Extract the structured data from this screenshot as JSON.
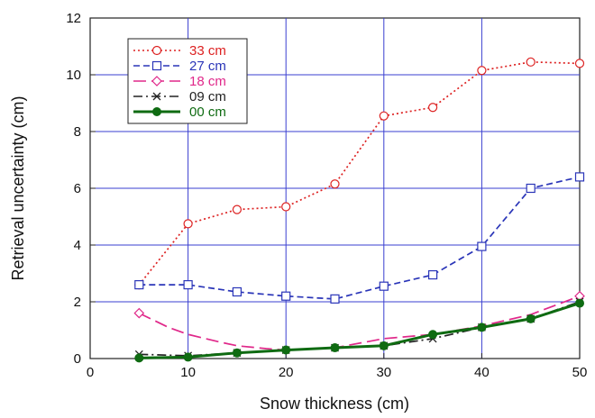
{
  "chart_data": {
    "type": "line",
    "title": "",
    "xlabel": "Snow thickness (cm)",
    "ylabel": "Retrieval uncertainty (cm)",
    "xlim": [
      0,
      50
    ],
    "ylim": [
      0,
      12
    ],
    "xticks": [
      0,
      10,
      20,
      30,
      40,
      50
    ],
    "yticks": [
      0,
      2,
      4,
      6,
      8,
      10,
      12
    ],
    "grid": true,
    "legend_position": "top-left",
    "x": [
      5,
      10,
      15,
      20,
      25,
      30,
      35,
      40,
      45,
      50
    ],
    "series": [
      {
        "name": "33 cm",
        "color": "#dd2222",
        "dash": "dotted",
        "marker": "circle",
        "values": [
          2.6,
          4.75,
          5.25,
          5.35,
          6.15,
          8.55,
          8.85,
          10.15,
          10.45,
          10.4
        ]
      },
      {
        "name": "27 cm",
        "color": "#2a35b8",
        "dash": "dashed",
        "marker": "square",
        "values": [
          2.6,
          2.6,
          2.35,
          2.2,
          2.1,
          2.55,
          2.95,
          3.95,
          6.0,
          6.4
        ]
      },
      {
        "name": "18 cm",
        "color": "#e0288a",
        "dash": "long-dash",
        "marker": "diamond",
        "values": [
          1.6,
          null,
          null,
          null,
          null,
          null,
          null,
          null,
          null,
          2.2
        ],
        "curve": [
          [
            5,
            1.6
          ],
          [
            8,
            1.1
          ],
          [
            10,
            0.85
          ],
          [
            13,
            0.6
          ],
          [
            15,
            0.45
          ],
          [
            18,
            0.35
          ],
          [
            20,
            0.3
          ],
          [
            25,
            0.38
          ],
          [
            30,
            0.7
          ],
          [
            35,
            0.85
          ],
          [
            40,
            1.15
          ],
          [
            45,
            1.55
          ],
          [
            50,
            2.2
          ]
        ]
      },
      {
        "name": "09 cm",
        "color": "#222222",
        "dash": "dash-dot",
        "marker": "x",
        "values": [
          0.15,
          0.1,
          0.2,
          0.3,
          0.38,
          0.45,
          0.7,
          1.1,
          1.4,
          2.0
        ]
      },
      {
        "name": "00 cm",
        "color": "#0f6b12",
        "dash": "solid",
        "marker": "filled-circle",
        "values": [
          0.02,
          0.05,
          0.2,
          0.3,
          0.38,
          0.45,
          0.85,
          1.1,
          1.4,
          1.95
        ]
      }
    ]
  }
}
